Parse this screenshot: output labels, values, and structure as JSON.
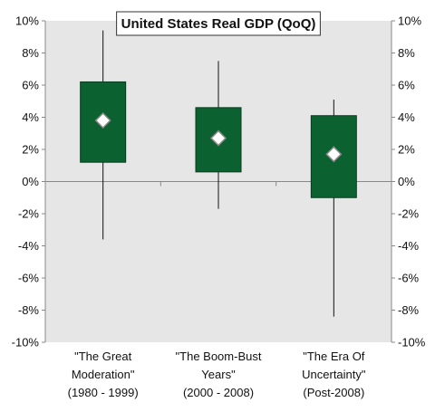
{
  "chart_data": {
    "type": "box",
    "title": "United States Real GDP (QoQ)",
    "y_ticks": [
      "10%",
      "8%",
      "6%",
      "4%",
      "2%",
      "0%",
      "-2%",
      "-4%",
      "-6%",
      "-8%",
      "-10%"
    ],
    "ylim": [
      -10,
      10
    ],
    "y_unit": "%",
    "grid": false,
    "categories": [
      {
        "lines": [
          "\"The Great",
          "Moderation\"",
          "(1980 - 1999)"
        ]
      },
      {
        "lines": [
          "\"The Boom-Bust",
          "Years\"",
          "(2000 - 2008)"
        ]
      },
      {
        "lines": [
          "\"The Era Of",
          "Uncertainty\"",
          "(Post-2008)"
        ]
      }
    ],
    "series": [
      {
        "low": -3.6,
        "box_low": 1.2,
        "box_high": 6.2,
        "high": 9.4,
        "marker": 3.8
      },
      {
        "low": -1.7,
        "box_low": 0.6,
        "box_high": 4.6,
        "high": 7.5,
        "marker": 2.7
      },
      {
        "low": -8.4,
        "box_low": -1.0,
        "box_high": 4.1,
        "high": 5.1,
        "marker": 1.7
      }
    ],
    "colors": {
      "plot_background": "#e6e6e6",
      "box_fill": "#0b6130",
      "marker_fill": "#ffffff",
      "marker_stroke": "#8a8a8a",
      "axis": "#888888",
      "whisker": "#111111"
    }
  }
}
